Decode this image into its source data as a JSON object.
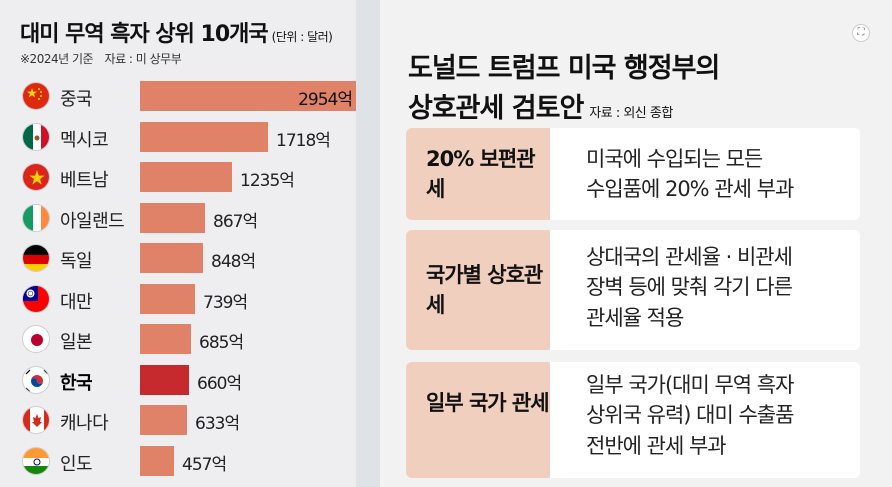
{
  "left_panel": {
    "title": "대미 무역 흑자 상위 10개국",
    "unit": "(단위 : 달러)",
    "note": "※2024년 기준　자료 : 미 상무부"
  },
  "chart_data": {
    "type": "bar",
    "orientation": "horizontal",
    "title": "대미 무역 흑자 상위 10개국",
    "unit": "(단위 : 달러)",
    "categories": [
      "중국",
      "멕시코",
      "베트남",
      "아일랜드",
      "독일",
      "대만",
      "일본",
      "한국",
      "캐나다",
      "인도"
    ],
    "values": [
      2954,
      1718,
      1235,
      867,
      848,
      739,
      685,
      660,
      633,
      457
    ],
    "value_labels": [
      "2954억",
      "1718억",
      "1235억",
      "867억",
      "848억",
      "739억",
      "685억",
      "660억",
      "633억",
      "457억"
    ],
    "highlight": "한국",
    "colors": {
      "bar": "#e08268",
      "highlight": "#c72a2e"
    },
    "flags": [
      "china-flag-icon",
      "mexico-flag-icon",
      "vietnam-flag-icon",
      "ireland-flag-icon",
      "germany-flag-icon",
      "taiwan-flag-icon",
      "japan-flag-icon",
      "korea-flag-icon",
      "canada-flag-icon",
      "india-flag-icon"
    ]
  },
  "right_panel": {
    "title_line1": "도널드 트럼프 미국 행정부의",
    "title_line2": "상호관세 검토안",
    "source": "자료 : 외신 종합",
    "policies": [
      {
        "type": "20%\n보편관세",
        "description": "미국에 수입되는 모든\n수입품에 20% 관세 부과"
      },
      {
        "type": "국가별\n상호관세",
        "description": "상대국의 관세율 · 비관세\n장벽 등에 맞춰 각기 다른\n관세율 적용"
      },
      {
        "type": "일부 국가\n관세",
        "description": "일부 국가(대미 무역 흑자\n상위국 유력) 대미 수출품\n전반에 관세 부과"
      }
    ],
    "colors": {
      "type_bg": "#f1cfbf",
      "desc_bg": "#ffffff"
    }
  }
}
